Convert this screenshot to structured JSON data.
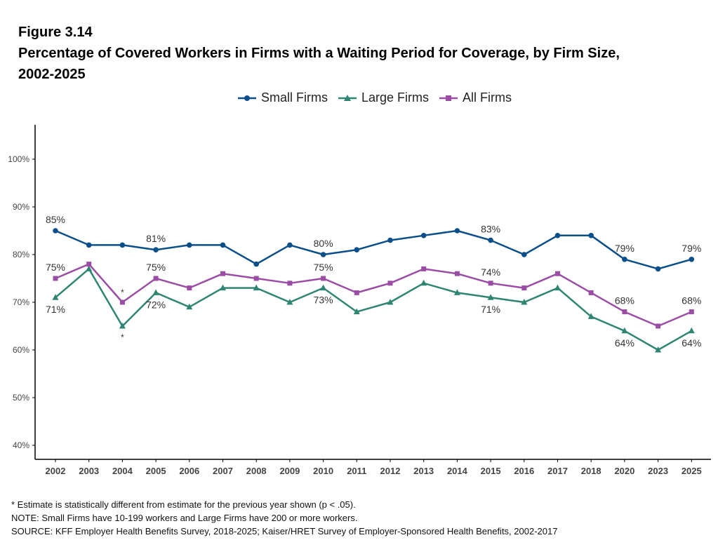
{
  "figure": {
    "label": "Figure 3.14",
    "title_line1": "Percentage of Covered Workers in Firms with a Waiting Period for Coverage, by Firm Size,",
    "title_line2": "2002-2025"
  },
  "chart_data": {
    "type": "line",
    "categories": [
      "2002",
      "2003",
      "2004",
      "2005",
      "2006",
      "2007",
      "2008",
      "2009",
      "2010",
      "2011",
      "2012",
      "2013",
      "2014",
      "2015",
      "2016",
      "2017",
      "2018",
      "2020",
      "2023",
      "2025"
    ],
    "y_ticks": [
      "40%",
      "50%",
      "60%",
      "70%",
      "80%",
      "90%",
      "100%"
    ],
    "ylim": [
      40,
      100
    ],
    "legend_position": "top-center",
    "series": [
      {
        "name": "Small Firms",
        "color": "#0b4f8a",
        "marker": "circle",
        "values": [
          85,
          82,
          82,
          81,
          82,
          82,
          78,
          82,
          80,
          81,
          83,
          84,
          85,
          83,
          80,
          84,
          84,
          79,
          77,
          79
        ]
      },
      {
        "name": "Large Firms",
        "color": "#2e8572",
        "marker": "triangle",
        "values": [
          71,
          77,
          65,
          72,
          69,
          73,
          73,
          70,
          73,
          68,
          70,
          74,
          72,
          71,
          70,
          73,
          67,
          64,
          60,
          64
        ]
      },
      {
        "name": "All Firms",
        "color": "#9b4da6",
        "marker": "square",
        "values": [
          75,
          78,
          70,
          75,
          73,
          76,
          75,
          74,
          75,
          72,
          74,
          77,
          76,
          74,
          73,
          76,
          72,
          68,
          65,
          68
        ]
      }
    ],
    "data_labels": [
      {
        "series": 0,
        "index": 0,
        "text": "85%",
        "pos": "above"
      },
      {
        "series": 0,
        "index": 3,
        "text": "81%",
        "pos": "above"
      },
      {
        "series": 0,
        "index": 8,
        "text": "80%",
        "pos": "above"
      },
      {
        "series": 0,
        "index": 13,
        "text": "83%",
        "pos": "above"
      },
      {
        "series": 0,
        "index": 17,
        "text": "79%",
        "pos": "above"
      },
      {
        "series": 0,
        "index": 19,
        "text": "79%",
        "pos": "above"
      },
      {
        "series": 2,
        "index": 0,
        "text": "75%",
        "pos": "above"
      },
      {
        "series": 2,
        "index": 3,
        "text": "75%",
        "pos": "above"
      },
      {
        "series": 2,
        "index": 8,
        "text": "75%",
        "pos": "above"
      },
      {
        "series": 2,
        "index": 13,
        "text": "74%",
        "pos": "above"
      },
      {
        "series": 2,
        "index": 17,
        "text": "68%",
        "pos": "above"
      },
      {
        "series": 2,
        "index": 19,
        "text": "68%",
        "pos": "above"
      },
      {
        "series": 1,
        "index": 0,
        "text": "71%",
        "pos": "below"
      },
      {
        "series": 1,
        "index": 3,
        "text": "72%",
        "pos": "below"
      },
      {
        "series": 1,
        "index": 8,
        "text": "73%",
        "pos": "below"
      },
      {
        "series": 1,
        "index": 13,
        "text": "71%",
        "pos": "below"
      },
      {
        "series": 1,
        "index": 17,
        "text": "64%",
        "pos": "below"
      },
      {
        "series": 1,
        "index": 19,
        "text": "64%",
        "pos": "below"
      },
      {
        "series": 2,
        "index": 2,
        "text": "*",
        "pos": "above"
      },
      {
        "series": 1,
        "index": 2,
        "text": "*",
        "pos": "below"
      }
    ]
  },
  "notes": {
    "asterisk": "* Estimate is statistically different from estimate for the previous year shown (p < .05).",
    "note": "NOTE: Small Firms have 10-199 workers and Large Firms have 200 or more workers.",
    "source": "SOURCE: KFF Employer Health Benefits Survey, 2018-2025; Kaiser/HRET Survey of Employer-Sponsored Health Benefits, 2002-2017"
  }
}
